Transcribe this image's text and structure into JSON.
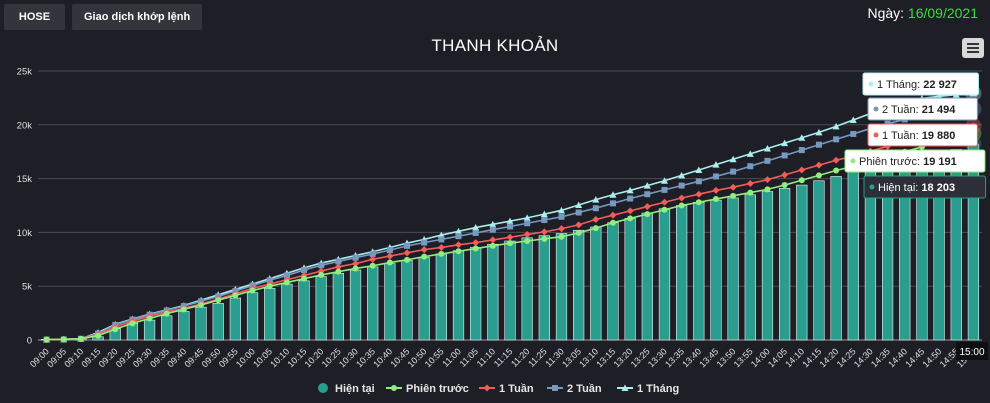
{
  "header": {
    "tabs": [
      "HOSE",
      "Giao dịch khớp lệnh"
    ],
    "date_label": "Ngày:",
    "date_value": "16/09/2021"
  },
  "chart_data": {
    "type": "bar",
    "title": "THANH KHOẢN",
    "colors": {
      "Hiện tại": "#2a9d8f",
      "Phiên trước": "#90ee7e",
      "1 Tuần": "#f45b5b",
      "2 Tuần": "#7798bf",
      "1 Tháng": "#aaeeee"
    },
    "ylim": [
      0,
      25000
    ],
    "yticks": [
      0,
      5000,
      10000,
      15000,
      20000,
      25000
    ],
    "ytick_labels": [
      "0",
      "5k",
      "10k",
      "15k",
      "20k",
      "25k"
    ],
    "categories": [
      "09:00",
      "09:05",
      "09:10",
      "09:15",
      "09:20",
      "09:25",
      "09:30",
      "09:35",
      "09:40",
      "09:45",
      "09:50",
      "09:55",
      "10:00",
      "10:05",
      "10:10",
      "10:15",
      "10:20",
      "10:25",
      "10:30",
      "10:35",
      "10:40",
      "10:45",
      "10:50",
      "10:55",
      "11:00",
      "11:05",
      "11:10",
      "11:15",
      "11:20",
      "11:25",
      "11:30",
      "13:05",
      "13:10",
      "13:15",
      "13:20",
      "13:25",
      "13:30",
      "13:35",
      "13:40",
      "13:45",
      "13:50",
      "13:55",
      "14:00",
      "14:05",
      "14:10",
      "14:15",
      "14:20",
      "14:25",
      "14:30",
      "14:35",
      "14:40",
      "14:45",
      "14:50",
      "14:55",
      "15:00"
    ],
    "series": [
      {
        "name": "Hiện tại",
        "kind": "bar",
        "values": [
          60,
          100,
          150,
          300,
          1050,
          1550,
          1850,
          2250,
          2650,
          3050,
          3400,
          3900,
          4400,
          4800,
          5200,
          5500,
          5900,
          6200,
          6500,
          6800,
          7100,
          7400,
          7700,
          8000,
          8300,
          8600,
          8900,
          9200,
          9500,
          9700,
          9900,
          10200,
          10500,
          10900,
          11300,
          11800,
          12200,
          12500,
          12800,
          13000,
          13200,
          13500,
          13800,
          14100,
          14400,
          14800,
          15200,
          15700,
          16200,
          16500,
          16800,
          17100,
          17400,
          17700,
          18203
        ]
      },
      {
        "name": "Phiên trước",
        "kind": "line",
        "values": [
          40,
          60,
          110,
          400,
          1000,
          1550,
          2000,
          2450,
          2850,
          3250,
          3700,
          4150,
          4600,
          5000,
          5350,
          5700,
          6050,
          6350,
          6650,
          6900,
          7200,
          7450,
          7750,
          8000,
          8250,
          8500,
          8750,
          9000,
          9200,
          9400,
          9600,
          9950,
          10400,
          10900,
          11300,
          11700,
          12100,
          12500,
          12800,
          13100,
          13400,
          13700,
          14000,
          14400,
          14850,
          15300,
          15750,
          16150,
          16600,
          17050,
          17500,
          17950,
          18400,
          18800,
          19191
        ]
      },
      {
        "name": "1 Tuần",
        "kind": "line",
        "values": [
          40,
          60,
          110,
          500,
          1200,
          1750,
          2200,
          2600,
          2950,
          3350,
          3800,
          4300,
          4800,
          5200,
          5600,
          6000,
          6400,
          6800,
          7100,
          7500,
          7800,
          8100,
          8400,
          8600,
          8850,
          9050,
          9300,
          9550,
          9800,
          10050,
          10350,
          10700,
          11200,
          11600,
          12000,
          12400,
          12800,
          13200,
          13550,
          13900,
          14200,
          14550,
          14900,
          15350,
          15800,
          16250,
          16700,
          17100,
          17550,
          18000,
          18450,
          18850,
          19200,
          19500,
          19880
        ]
      },
      {
        "name": "2 Tuần",
        "kind": "line",
        "values": [
          40,
          60,
          110,
          600,
          1400,
          1900,
          2350,
          2750,
          3150,
          3600,
          4050,
          4550,
          5050,
          5550,
          6000,
          6500,
          6950,
          7300,
          7650,
          8000,
          8350,
          8750,
          9050,
          9350,
          9650,
          9950,
          10250,
          10550,
          10850,
          11150,
          11450,
          11850,
          12250,
          12700,
          13150,
          13550,
          13950,
          14350,
          14750,
          15200,
          15650,
          16150,
          16650,
          17150,
          17650,
          18150,
          18650,
          19150,
          19650,
          20100,
          20500,
          20800,
          21050,
          21250,
          21494
        ]
      },
      {
        "name": "1 Tháng",
        "kind": "line",
        "values": [
          40,
          60,
          110,
          700,
          1450,
          1950,
          2400,
          2800,
          3200,
          3700,
          4200,
          4700,
          5200,
          5700,
          6200,
          6700,
          7150,
          7500,
          7850,
          8200,
          8600,
          9000,
          9350,
          9750,
          10100,
          10450,
          10750,
          11050,
          11350,
          11700,
          12050,
          12550,
          13050,
          13500,
          13900,
          14350,
          14800,
          15300,
          15800,
          16300,
          16800,
          17300,
          17800,
          18300,
          18800,
          19300,
          19850,
          20450,
          21050,
          21650,
          22150,
          22450,
          22650,
          22800,
          22927
        ]
      }
    ],
    "tooltip": {
      "time": "15:00",
      "entries": [
        {
          "name": "1 Tháng",
          "value": "22 927"
        },
        {
          "name": "2 Tuần",
          "value": "21 494"
        },
        {
          "name": "1 Tuần",
          "value": "19 880"
        },
        {
          "name": "Phiên trước",
          "value": "19 191"
        },
        {
          "name": "Hiện tại",
          "value": "18 203"
        }
      ]
    },
    "legend_position": "bottom",
    "grid": true
  }
}
